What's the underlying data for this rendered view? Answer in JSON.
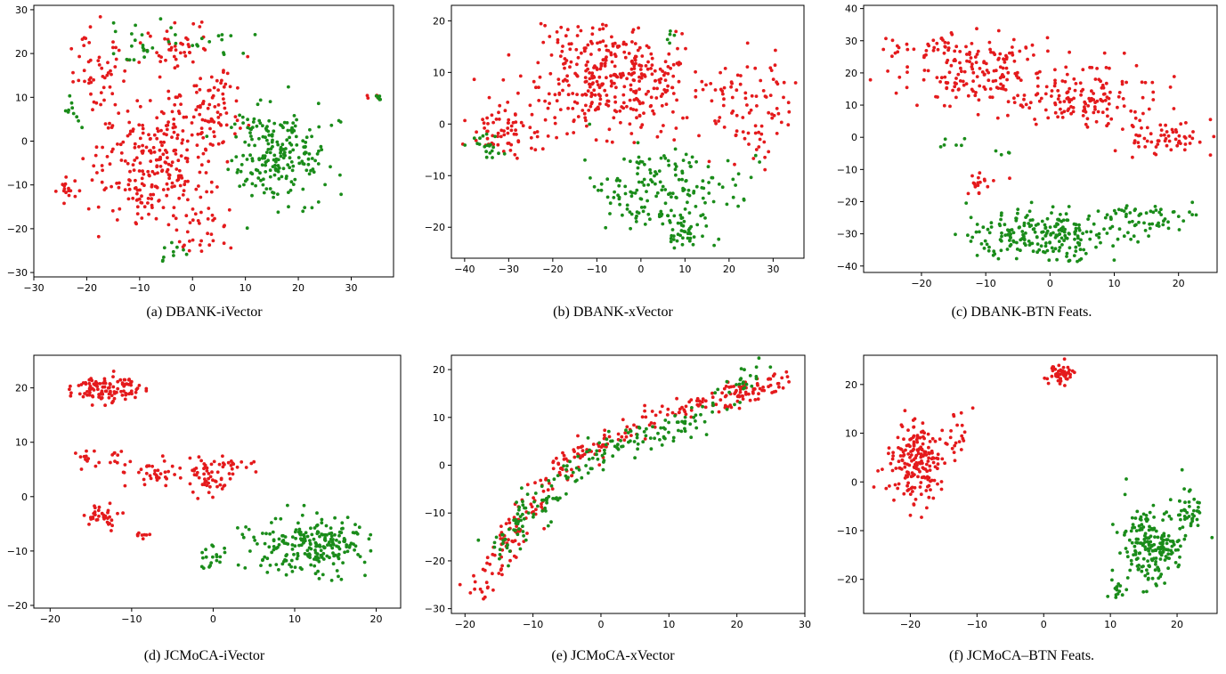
{
  "figure": {
    "point_colors": {
      "red": "#e41a1c",
      "green": "#1a8c1a"
    },
    "captions": [
      "(a) DBANK-iVector",
      "(b) DBANK-xVector",
      "(c) DBANK-BTN Feats.",
      "(d) JCMoCA-iVector",
      "(e) JCMoCA-xVector",
      "(f) JCMoCA–BTN Feats."
    ]
  },
  "chart_data": [
    {
      "type": "scatter",
      "caption": "(a) DBANK-iVector",
      "xlim": [
        -30,
        38
      ],
      "ylim": [
        -31,
        31
      ],
      "xticks": [
        -30,
        -20,
        -10,
        0,
        10,
        20,
        30
      ],
      "yticks": [
        -30,
        -20,
        -10,
        0,
        10,
        20,
        30
      ],
      "grid": false,
      "series": [
        {
          "color": "red",
          "clusters": [
            {
              "cx": -8,
              "cy": -5,
              "sx": 7,
              "sy": 9,
              "n": 260
            },
            {
              "cx": 4,
              "cy": 8,
              "sx": 4,
              "sy": 6,
              "n": 80
            },
            {
              "cx": -18,
              "cy": 16,
              "sx": 4,
              "sy": 6,
              "n": 50
            },
            {
              "cx": -3,
              "cy": 22,
              "sx": 4,
              "sy": 3,
              "n": 40
            },
            {
              "cx": -24,
              "cy": -10,
              "sx": 2,
              "sy": 2,
              "n": 15
            },
            {
              "cx": 2,
              "cy": -20,
              "sx": 3,
              "sy": 3,
              "n": 30
            },
            {
              "cx": 34,
              "cy": 10,
              "sx": 0.6,
              "sy": 0.5,
              "n": 5
            }
          ]
        },
        {
          "color": "green",
          "clusters": [
            {
              "cx": 16,
              "cy": -3,
              "sx": 6,
              "sy": 7,
              "n": 220
            },
            {
              "cx": -10,
              "cy": 22,
              "sx": 5,
              "sy": 3,
              "n": 25
            },
            {
              "cx": 5,
              "cy": 22,
              "sx": 4,
              "sy": 3,
              "n": 12
            },
            {
              "cx": -4,
              "cy": -25,
              "sx": 1.5,
              "sy": 1.5,
              "n": 10
            },
            {
              "cx": 35,
              "cy": 10,
              "sx": 0.6,
              "sy": 0.6,
              "n": 6
            },
            {
              "cx": -22,
              "cy": 8,
              "sx": 2,
              "sy": 3,
              "n": 10
            }
          ]
        }
      ]
    },
    {
      "type": "scatter",
      "caption": "(b) DBANK-xVector",
      "xlim": [
        -43,
        37
      ],
      "ylim": [
        -26,
        23
      ],
      "xticks": [
        -40,
        -30,
        -20,
        -10,
        0,
        10,
        20,
        30
      ],
      "yticks": [
        -20,
        -10,
        0,
        10,
        20
      ],
      "grid": false,
      "series": [
        {
          "color": "red",
          "clusters": [
            {
              "cx": -5,
              "cy": 8,
              "sx": 12,
              "sy": 6,
              "n": 330
            },
            {
              "cx": -30,
              "cy": -2,
              "sx": 6,
              "sy": 4,
              "n": 70
            },
            {
              "cx": 25,
              "cy": 3,
              "sx": 6,
              "sy": 6,
              "n": 80
            },
            {
              "cx": -12,
              "cy": 16,
              "sx": 6,
              "sy": 3,
              "n": 40
            }
          ]
        },
        {
          "color": "green",
          "clusters": [
            {
              "cx": 5,
              "cy": -13,
              "sx": 10,
              "sy": 5,
              "n": 170
            },
            {
              "cx": 10,
              "cy": -21,
              "sx": 3,
              "sy": 2,
              "n": 35
            },
            {
              "cx": -35,
              "cy": -4,
              "sx": 3,
              "sy": 3,
              "n": 20
            },
            {
              "cx": 7,
              "cy": 17,
              "sx": 1,
              "sy": 1,
              "n": 5
            }
          ]
        }
      ]
    },
    {
      "type": "scatter",
      "caption": "(c) DBANK-BTN Feats.",
      "xlim": [
        -29,
        26
      ],
      "ylim": [
        -42,
        41
      ],
      "xticks": [
        -20,
        -10,
        0,
        10,
        20
      ],
      "yticks": [
        -40,
        -30,
        -20,
        -10,
        0,
        10,
        20,
        30,
        40
      ],
      "grid": false,
      "series": [
        {
          "color": "red",
          "clusters": [
            {
              "cx": -12,
              "cy": 22,
              "sx": 7,
              "sy": 7,
              "n": 180
            },
            {
              "cx": 5,
              "cy": 12,
              "sx": 7,
              "sy": 6,
              "n": 150
            },
            {
              "cx": 18,
              "cy": 0,
              "sx": 4,
              "sy": 4,
              "n": 60
            },
            {
              "cx": -11,
              "cy": -15,
              "sx": 2,
              "sy": 2,
              "n": 18
            },
            {
              "cx": -23,
              "cy": 28,
              "sx": 2,
              "sy": 2,
              "n": 10
            }
          ]
        },
        {
          "color": "green",
          "clusters": [
            {
              "cx": -1,
              "cy": -30,
              "sx": 7,
              "sy": 5,
              "n": 220
            },
            {
              "cx": 15,
              "cy": -25,
              "sx": 5,
              "sy": 3,
              "n": 60
            },
            {
              "cx": -15,
              "cy": -2,
              "sx": 1.5,
              "sy": 1,
              "n": 6
            },
            {
              "cx": -7,
              "cy": -5,
              "sx": 1,
              "sy": 0.8,
              "n": 4
            }
          ]
        }
      ]
    },
    {
      "type": "scatter",
      "caption": "(d) JCMoCA-iVector",
      "xlim": [
        -22,
        23
      ],
      "ylim": [
        -20.5,
        26
      ],
      "xticks": [
        -20,
        -10,
        0,
        10,
        20
      ],
      "yticks": [
        -20,
        -10,
        0,
        10,
        20
      ],
      "grid": false,
      "series": [
        {
          "color": "red",
          "clusters": [
            {
              "cx": -13,
              "cy": 20,
              "sx": 3,
              "sy": 1.5,
              "n": 110
            },
            {
              "cx": -15,
              "cy": 7,
              "sx": 0.8,
              "sy": 1.5,
              "n": 12
            },
            {
              "cx": -11,
              "cy": 6.5,
              "sx": 1,
              "sy": 1.2,
              "n": 12
            },
            {
              "cx": -7,
              "cy": 5,
              "sx": 1.5,
              "sy": 2,
              "n": 30
            },
            {
              "cx": 0,
              "cy": 4,
              "sx": 2.5,
              "sy": 2.5,
              "n": 70
            },
            {
              "cx": -13.5,
              "cy": -3.5,
              "sx": 1.5,
              "sy": 1.3,
              "n": 35
            },
            {
              "cx": -8.5,
              "cy": -7,
              "sx": 0.5,
              "sy": 0.5,
              "n": 8
            }
          ]
        },
        {
          "color": "green",
          "clusters": [
            {
              "cx": 12,
              "cy": -9,
              "sx": 4.5,
              "sy": 3.5,
              "n": 230
            },
            {
              "cx": 0,
              "cy": -11,
              "sx": 1,
              "sy": 1.5,
              "n": 18
            }
          ]
        }
      ]
    },
    {
      "type": "scatter",
      "caption": "(e) JCMoCA-xVector",
      "xlim": [
        -22,
        30
      ],
      "ylim": [
        -31,
        23
      ],
      "xticks": [
        -20,
        -10,
        0,
        10,
        20,
        30
      ],
      "yticks": [
        -30,
        -20,
        -10,
        0,
        10,
        20
      ],
      "grid": false,
      "series": [
        {
          "color": "red",
          "curve": [
            [
              -18,
              -28
            ],
            [
              -14,
              -16
            ],
            [
              -8,
              -3
            ],
            [
              0,
              5
            ],
            [
              10,
              11
            ],
            [
              20,
              15
            ],
            [
              27,
              18
            ]
          ],
          "n": 280,
          "spread": 1.3
        },
        {
          "color": "green",
          "curve": [
            [
              -15,
              -18
            ],
            [
              -10,
              -8
            ],
            [
              -3,
              0
            ],
            [
              5,
              6
            ],
            [
              13,
              9
            ],
            [
              24,
              21
            ]
          ],
          "n": 210,
          "spread": 1.5
        }
      ]
    },
    {
      "type": "scatter",
      "caption": "(f) JCMoCA–BTN Feats.",
      "xlim": [
        -27,
        26
      ],
      "ylim": [
        -27,
        26
      ],
      "xticks": [
        -20,
        -10,
        0,
        10,
        20
      ],
      "yticks": [
        -20,
        -10,
        0,
        10,
        20
      ],
      "grid": false,
      "series": [
        {
          "color": "red",
          "clusters": [
            {
              "cx": -19,
              "cy": 4,
              "sx": 2.5,
              "sy": 5,
              "n": 190
            },
            {
              "cx": -13,
              "cy": 10,
              "sx": 1,
              "sy": 3,
              "n": 20
            },
            {
              "cx": 2.5,
              "cy": 22,
              "sx": 1.2,
              "sy": 1.2,
              "n": 50
            }
          ]
        },
        {
          "color": "green",
          "clusters": [
            {
              "cx": 16,
              "cy": -13,
              "sx": 3,
              "sy": 5,
              "n": 200
            },
            {
              "cx": 22,
              "cy": -6,
              "sx": 1.5,
              "sy": 3,
              "n": 40
            },
            {
              "cx": 11,
              "cy": -23,
              "sx": 1,
              "sy": 1,
              "n": 15
            }
          ]
        }
      ]
    }
  ]
}
